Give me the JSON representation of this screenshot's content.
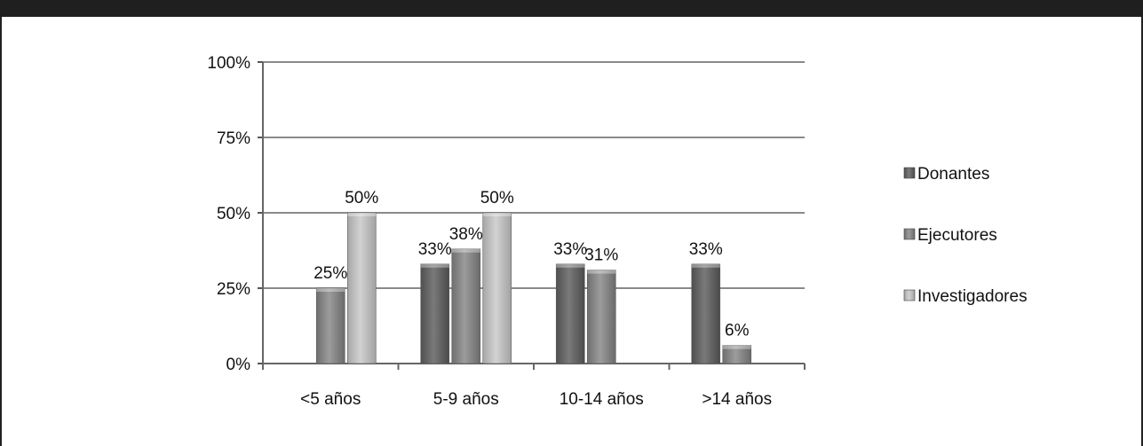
{
  "chart_data": {
    "type": "bar",
    "title": "",
    "xlabel": "",
    "ylabel": "",
    "ylim": [
      0,
      100
    ],
    "yticks": [
      0,
      25,
      50,
      75,
      100
    ],
    "ytick_labels": [
      "0%",
      "25%",
      "50%",
      "75%",
      "100%"
    ],
    "grid": true,
    "legend_position": "right",
    "categories": [
      "<5 años",
      "5-9 años",
      "10-14 años",
      ">14 años"
    ],
    "series": [
      {
        "name": "Donantes",
        "color": "#6a6a6a",
        "values": [
          null,
          33,
          33,
          33
        ],
        "labels": [
          "",
          "33%",
          "33%",
          "33%"
        ]
      },
      {
        "name": "Ejecutores",
        "color": "#8c8c8c",
        "values": [
          25,
          38,
          31,
          6
        ],
        "labels": [
          "25%",
          "38%",
          "31%",
          "6%"
        ]
      },
      {
        "name": "Investigadores",
        "color": "#bdbdbd",
        "values": [
          50,
          50,
          null,
          null
        ],
        "labels": [
          "50%",
          "50%",
          "",
          ""
        ]
      }
    ]
  }
}
